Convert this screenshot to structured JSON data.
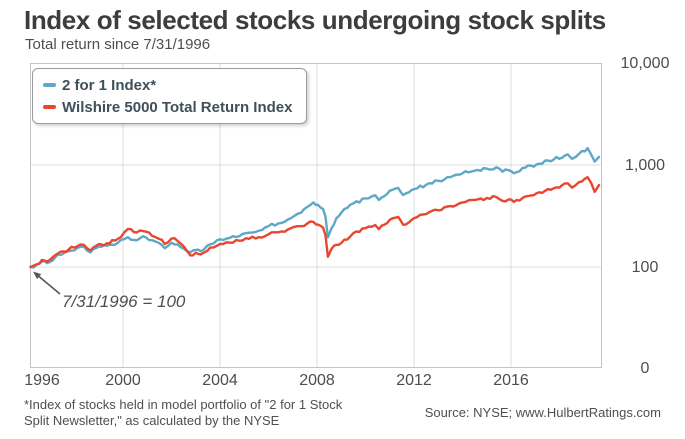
{
  "title": "Index of selected stocks undergoing stock splits",
  "subtitle": "Total return since 7/31/1996",
  "annotation": "7/31/1996 = 100",
  "footnote": {
    "line1": "*Index of stocks held in model portfolio of \"2 for 1 Stock",
    "line2": "Split Newsletter,\" as calculated by the NYSE"
  },
  "source": "Source: NYSE; www.HulbertRatings.com",
  "colors": {
    "series_blue": "#5fa7c7",
    "series_red": "#e8462f",
    "grid": "#dcdcdc",
    "plot_border": "#c4c4c4",
    "axis_text": "#4d4d4d",
    "annotation_arrow": "#565656"
  },
  "chart_data": {
    "type": "line",
    "title": "Index of selected stocks undergoing stock splits",
    "subtitle": "Total return since 7/31/1996",
    "base_note": "7/31/1996 = 100",
    "legend_position": "top-left",
    "grid": true,
    "x_axis": {
      "tick_labels": [
        "1996",
        "2000",
        "2004",
        "2008",
        "2012",
        "2016"
      ],
      "tick_values": [
        1996,
        2000,
        2004,
        2008,
        2012,
        2016
      ],
      "range_years": [
        1996.58,
        2019.1
      ]
    },
    "y_axis": {
      "scale": "log",
      "position": "right",
      "tick_labels": [
        "10,000",
        "1,000",
        "100",
        "0"
      ],
      "tick_values": [
        10000,
        1000,
        100,
        0
      ]
    },
    "legend": [
      {
        "name": "2 for 1 Index*",
        "color": "#5fa7c7"
      },
      {
        "name": "Wilshire 5000 Total Return Index",
        "color": "#e8462f"
      }
    ],
    "x": [
      1996.58,
      1996.8,
      1997.0,
      1997.2,
      1997.5,
      1997.8,
      1998.0,
      1998.3,
      1998.55,
      1998.8,
      1999.0,
      1999.4,
      1999.8,
      2000.2,
      2000.45,
      2000.7,
      2000.95,
      2001.2,
      2001.5,
      2001.72,
      2002.0,
      2002.25,
      2002.5,
      2002.78,
      2003.0,
      2003.2,
      2003.6,
      2004.0,
      2004.4,
      2004.8,
      2005.2,
      2005.6,
      2006.0,
      2006.4,
      2006.8,
      2007.2,
      2007.6,
      2007.85,
      2008.05,
      2008.25,
      2008.35,
      2008.45,
      2008.6,
      2008.8,
      2009.0,
      2009.5,
      2010.0,
      2010.4,
      2010.55,
      2011.0,
      2011.35,
      2011.55,
      2011.8,
      2012.0,
      2012.5,
      2013.0,
      2013.5,
      2014.0,
      2014.5,
      2015.0,
      2015.4,
      2015.65,
      2015.9,
      2016.1,
      2016.5,
      2017.0,
      2017.5,
      2018.0,
      2018.15,
      2018.4,
      2018.7,
      2018.95,
      2019.1
    ],
    "series": [
      {
        "name": "2 for 1 Index*",
        "values": [
          100,
          105,
          113,
          109,
          125,
          136,
          143,
          153,
          159,
          139,
          153,
          161,
          172,
          196,
          184,
          191,
          195,
          183,
          171,
          153,
          173,
          167,
          152,
          139,
          147,
          143,
          167,
          187,
          193,
          201,
          217,
          227,
          251,
          267,
          292,
          332,
          388,
          430,
          405,
          370,
          310,
          195,
          240,
          300,
          340,
          420,
          470,
          505,
          455,
          560,
          595,
          508,
          540,
          580,
          640,
          700,
          760,
          830,
          880,
          920,
          950,
          860,
          890,
          830,
          940,
          1030,
          1130,
          1270,
          1150,
          1290,
          1460,
          1080,
          1200
        ]
      },
      {
        "name": "Wilshire 5000 Total Return Index",
        "values": [
          100,
          106,
          117,
          113,
          131,
          142,
          149,
          159,
          165,
          145,
          161,
          171,
          188,
          236,
          220,
          228,
          222,
          202,
          188,
          168,
          190,
          180,
          160,
          130,
          138,
          133,
          155,
          168,
          173,
          181,
          189,
          196,
          209,
          219,
          233,
          251,
          267,
          277,
          260,
          243,
          205,
          126,
          150,
          165,
          172,
          215,
          240,
          258,
          235,
          290,
          310,
          260,
          275,
          300,
          330,
          360,
          395,
          430,
          455,
          475,
          485,
          445,
          460,
          435,
          490,
          540,
          590,
          660,
          600,
          680,
          760,
          545,
          635
        ]
      }
    ]
  }
}
